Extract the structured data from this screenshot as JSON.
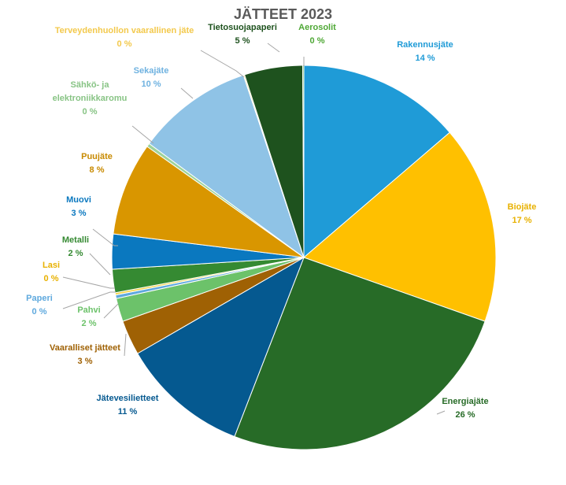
{
  "chart_data": {
    "type": "pie",
    "title": "JÄTTEET 2023",
    "start_angle_deg": 0,
    "direction": "clockwise",
    "slices": [
      {
        "name": "Rakennusjäte",
        "value": 14,
        "label_value": "14 %",
        "color": "#1f9bd7",
        "label_color": "#1f9bd7",
        "label_lines": [
          "Rakennusjäte"
        ]
      },
      {
        "name": "Biojäte",
        "value": 17,
        "label_value": "17 %",
        "color": "#ffc000",
        "label_color": "#e8b100",
        "label_lines": [
          "Biojäte"
        ]
      },
      {
        "name": "Energiajäte",
        "value": 26,
        "label_value": "26 %",
        "color": "#276b27",
        "label_color": "#276b27",
        "label_lines": [
          "Energiajäte"
        ]
      },
      {
        "name": "Jätevesilietteet",
        "value": 11,
        "label_value": "11 %",
        "color": "#055990",
        "label_color": "#055990",
        "label_lines": [
          "Jätevesilietteet"
        ]
      },
      {
        "name": "Vaaralliset jätteet",
        "value": 3,
        "label_value": "3 %",
        "color": "#9f6104",
        "label_color": "#9f6104",
        "label_lines": [
          "Vaaralliset jätteet"
        ]
      },
      {
        "name": "Pahvi",
        "value": 2,
        "label_value": "2 %",
        "color": "#6cc26a",
        "label_color": "#6cc26a",
        "label_lines": [
          "Pahvi"
        ]
      },
      {
        "name": "Paperi",
        "value": 0.3,
        "label_value": "0 %",
        "color": "#5fa9de",
        "label_color": "#5fa9de",
        "label_lines": [
          "Paperi"
        ]
      },
      {
        "name": "Lasi",
        "value": 0.2,
        "label_value": "0 %",
        "color": "#f4d44a",
        "label_color": "#e8b100",
        "label_lines": [
          "Lasi"
        ]
      },
      {
        "name": "Metalli",
        "value": 2,
        "label_value": "2 %",
        "color": "#358a32",
        "label_color": "#358a32",
        "label_lines": [
          "Metalli"
        ]
      },
      {
        "name": "Muovi",
        "value": 3,
        "label_value": "3 %",
        "color": "#0a78bf",
        "label_color": "#0a78bf",
        "label_lines": [
          "Muovi"
        ]
      },
      {
        "name": "Puujäte",
        "value": 8,
        "label_value": "8 %",
        "color": "#d99600",
        "label_color": "#c88a00",
        "label_lines": [
          "Puujäte"
        ]
      },
      {
        "name": "Sähkö- ja elektroniikkaromu",
        "value": 0.3,
        "label_value": "0 %",
        "color": "#9ed39b",
        "label_color": "#88c485",
        "label_lines": [
          "Sähkö- ja",
          "elektroniikkaromu"
        ]
      },
      {
        "name": "Sekajäte",
        "value": 10,
        "label_value": "10 %",
        "color": "#8fc3e6",
        "label_color": "#6fb2e0",
        "label_lines": [
          "Sekajäte"
        ]
      },
      {
        "name": "Terveydenhuollon vaarallinen jäte",
        "value": 0.1,
        "label_value": "0 %",
        "color": "#ffe28a",
        "label_color": "#f3c94c",
        "label_lines": [
          "Terveydenhuollon vaarallinen jäte"
        ]
      },
      {
        "name": "Tietosuojapaperi",
        "value": 5,
        "label_value": "5 %",
        "color": "#1e521e",
        "label_color": "#1e521e",
        "label_lines": [
          "Tietosuojapaperi"
        ]
      },
      {
        "name": "Aerosolit",
        "value": 0.1,
        "label_value": "0 %",
        "color": "#4fa836",
        "label_color": "#4fa836",
        "label_lines": [
          "Aerosolit"
        ]
      }
    ]
  }
}
